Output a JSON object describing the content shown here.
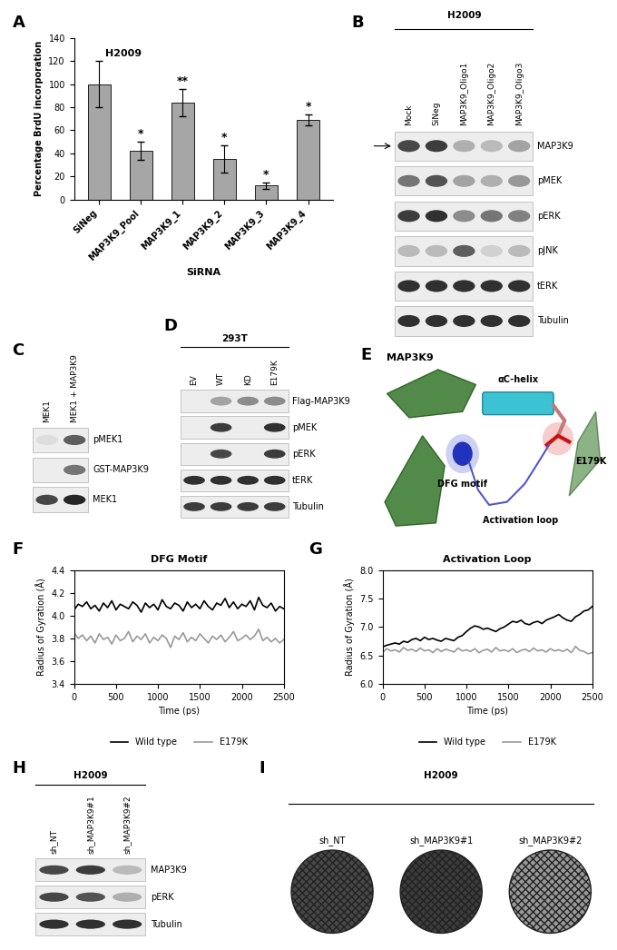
{
  "chart_data": [
    {
      "panel": "A",
      "type": "bar",
      "title": "H2009",
      "x_label": "SiRNA",
      "y_label": "Percentage BrdU incorporation",
      "categories": [
        "SiNeg",
        "MAP3K9_Pool",
        "MAP3K9_1",
        "MAP3K9_2",
        "MAP3K9_3",
        "MAP3K9_4"
      ],
      "values": [
        100,
        42,
        84,
        35,
        12,
        69
      ],
      "errors": [
        20,
        8,
        12,
        12,
        3,
        5
      ],
      "significance": [
        null,
        "*",
        "**",
        "*",
        "*",
        "*"
      ],
      "color": "#a6a6a6",
      "ylim": [
        0,
        140
      ],
      "yticks": [
        0,
        20,
        40,
        60,
        80,
        100,
        120,
        140
      ]
    },
    {
      "panel": "F",
      "type": "line",
      "title": "DFG Motif",
      "x_label": "Time (ps)",
      "y_label": "Radius of Gyration (Å)",
      "x": [
        0,
        50,
        100,
        150,
        200,
        250,
        300,
        350,
        400,
        450,
        500,
        550,
        600,
        650,
        700,
        750,
        800,
        850,
        900,
        950,
        1000,
        1050,
        1100,
        1150,
        1200,
        1250,
        1300,
        1350,
        1400,
        1450,
        1500,
        1550,
        1600,
        1650,
        1700,
        1750,
        1800,
        1850,
        1900,
        1950,
        2000,
        2050,
        2100,
        2150,
        2200,
        2250,
        2300,
        2350,
        2400,
        2450,
        2500
      ],
      "series": [
        {
          "name": "Wild type",
          "color": "#000000",
          "values": [
            4.05,
            4.1,
            4.08,
            4.12,
            4.06,
            4.09,
            4.04,
            4.11,
            4.07,
            4.13,
            4.05,
            4.1,
            4.08,
            4.06,
            4.12,
            4.09,
            4.03,
            4.11,
            4.07,
            4.1,
            4.05,
            4.14,
            4.08,
            4.06,
            4.11,
            4.09,
            4.04,
            4.12,
            4.07,
            4.1,
            4.06,
            4.13,
            4.08,
            4.05,
            4.11,
            4.09,
            4.15,
            4.07,
            4.12,
            4.06,
            4.1,
            4.08,
            4.13,
            4.05,
            4.16,
            4.09,
            4.07,
            4.11,
            4.04,
            4.08,
            4.06
          ]
        },
        {
          "name": "E179K",
          "color": "#999999",
          "values": [
            3.85,
            3.8,
            3.83,
            3.78,
            3.82,
            3.76,
            3.84,
            3.79,
            3.81,
            3.75,
            3.83,
            3.78,
            3.8,
            3.86,
            3.77,
            3.82,
            3.79,
            3.84,
            3.76,
            3.81,
            3.78,
            3.83,
            3.8,
            3.72,
            3.82,
            3.79,
            3.85,
            3.77,
            3.81,
            3.78,
            3.84,
            3.8,
            3.76,
            3.82,
            3.79,
            3.83,
            3.77,
            3.81,
            3.86,
            3.78,
            3.8,
            3.83,
            3.79,
            3.82,
            3.88,
            3.78,
            3.81,
            3.77,
            3.8,
            3.76,
            3.79
          ]
        }
      ],
      "xlim": [
        0,
        2500
      ],
      "xticks": [
        0,
        500,
        1000,
        1500,
        2000,
        2500
      ],
      "ylim": [
        3.4,
        4.4
      ],
      "yticks": [
        3.4,
        3.6,
        3.8,
        {
          "value": 4,
          "label": "4.0"
        },
        4.2,
        4.4
      ],
      "legend": "lower center"
    },
    {
      "panel": "G",
      "type": "line",
      "title": "Activation Loop",
      "x_label": "Time (ps)",
      "y_label": "Radius of Gyration (Å)",
      "x": [
        0,
        50,
        100,
        150,
        200,
        250,
        300,
        350,
        400,
        450,
        500,
        550,
        600,
        650,
        700,
        750,
        800,
        850,
        900,
        950,
        1000,
        1050,
        1100,
        1150,
        1200,
        1250,
        1300,
        1350,
        1400,
        1450,
        1500,
        1550,
        1600,
        1650,
        1700,
        1750,
        1800,
        1850,
        1900,
        1950,
        2000,
        2050,
        2100,
        2150,
        2200,
        2250,
        2300,
        2350,
        2400,
        2450,
        2500
      ],
      "series": [
        {
          "name": "Wild type",
          "color": "#000000",
          "values": [
            6.65,
            6.68,
            6.7,
            6.72,
            6.7,
            6.75,
            6.73,
            6.78,
            6.8,
            6.76,
            6.82,
            6.78,
            6.8,
            6.77,
            6.75,
            6.8,
            6.78,
            6.76,
            6.82,
            6.85,
            6.92,
            6.98,
            7.02,
            7.0,
            6.96,
            6.98,
            6.95,
            6.92,
            6.97,
            7.0,
            7.05,
            7.1,
            7.08,
            7.12,
            7.06,
            7.04,
            7.08,
            7.1,
            7.06,
            7.12,
            7.15,
            7.18,
            7.22,
            7.16,
            7.12,
            7.1,
            7.18,
            7.22,
            7.28,
            7.3,
            7.36
          ]
        },
        {
          "name": "E179K",
          "color": "#999999",
          "values": [
            6.55,
            6.62,
            6.58,
            6.6,
            6.56,
            6.64,
            6.59,
            6.61,
            6.57,
            6.63,
            6.58,
            6.6,
            6.55,
            6.62,
            6.57,
            6.61,
            6.59,
            6.56,
            6.63,
            6.58,
            6.6,
            6.57,
            6.62,
            6.55,
            6.59,
            6.61,
            6.56,
            6.64,
            6.58,
            6.6,
            6.57,
            6.62,
            6.55,
            6.59,
            6.61,
            6.57,
            6.63,
            6.58,
            6.6,
            6.56,
            6.62,
            6.58,
            6.6,
            6.57,
            6.61,
            6.55,
            6.66,
            6.59,
            6.57,
            6.53,
            6.55
          ]
        }
      ],
      "xlim": [
        0,
        2500
      ],
      "xticks": [
        0,
        500,
        1000,
        1500,
        2000,
        2500
      ],
      "ylim": [
        6,
        8
      ],
      "yticks": [
        {
          "value": 6,
          "label": "6.0"
        },
        6.5,
        {
          "value": 7,
          "label": "7.0"
        },
        7.5,
        {
          "value": 8,
          "label": "8.0"
        }
      ],
      "legend": "lower center"
    }
  ],
  "blots": [
    {
      "panel": "B",
      "title": "H2009",
      "lanes": [
        "Mock",
        "SiNeg",
        "MAP3K9_Oligo1",
        "MAP3K9_Oligo2",
        "MAP3K9_Oligo3"
      ],
      "rows": [
        {
          "name": "MAP3K9",
          "intensity": [
            0.8,
            0.85,
            0.35,
            0.3,
            0.4
          ]
        },
        {
          "name": "pMEK",
          "intensity": [
            0.6,
            0.75,
            0.4,
            0.35,
            0.45
          ]
        },
        {
          "name": "pERK",
          "intensity": [
            0.85,
            0.9,
            0.5,
            0.6,
            0.55
          ]
        },
        {
          "name": "pJNK",
          "intensity": [
            0.3,
            0.3,
            0.7,
            0.2,
            0.3
          ]
        },
        {
          "name": "tERK",
          "intensity": [
            0.9,
            0.9,
            0.9,
            0.9,
            0.9
          ]
        },
        {
          "name": "Tubulin",
          "intensity": [
            0.9,
            0.9,
            0.9,
            0.9,
            0.9
          ]
        }
      ]
    },
    {
      "panel": "C",
      "lanes": [
        "MEK1",
        "MEK1 + MAP3K9"
      ],
      "rows": [
        {
          "name": "pMEK1",
          "intensity": [
            0.15,
            0.7
          ]
        },
        {
          "name": "GST-MAP3K9",
          "intensity": [
            0,
            0.6
          ]
        },
        {
          "name": "MEK1",
          "intensity": [
            0.8,
            0.95
          ]
        }
      ]
    },
    {
      "panel": "D",
      "title": "293T",
      "lanes": [
        "EV",
        "WT",
        "KD",
        "E179K"
      ],
      "rows": [
        {
          "name": "Flag-MAP3K9",
          "intensity": [
            0,
            0.4,
            0.5,
            0.5
          ]
        },
        {
          "name": "pMEK",
          "intensity": [
            0,
            0.85,
            0,
            0.9
          ]
        },
        {
          "name": "pERK",
          "intensity": [
            0,
            0.8,
            0,
            0.85
          ]
        },
        {
          "name": "tERK",
          "intensity": [
            0.9,
            0.9,
            0.9,
            0.9
          ]
        },
        {
          "name": "Tubulin",
          "intensity": [
            0.85,
            0.85,
            0.85,
            0.85
          ]
        }
      ]
    },
    {
      "panel": "H",
      "title": "H2009",
      "lanes": [
        "sh_NT",
        "sh_MAP3K9#1",
        "sh_MAP3K9#2"
      ],
      "rows": [
        {
          "name": "MAP3K9",
          "intensity": [
            0.8,
            0.85,
            0.3
          ]
        },
        {
          "name": "pERK",
          "intensity": [
            0.8,
            0.75,
            0.35
          ]
        },
        {
          "name": "Tubulin",
          "intensity": [
            0.9,
            0.9,
            0.9
          ]
        }
      ]
    }
  ],
  "structure": {
    "panel": "E",
    "title": "MAP3K9",
    "labels": {
      "helix": "αC-helix",
      "dfg": "DFG motif",
      "mutation": "E179K",
      "loop": "Activation loop"
    }
  },
  "colony_assay": {
    "panel": "I",
    "title": "H2009",
    "wells": [
      {
        "name": "sh_NT",
        "density": 0.8
      },
      {
        "name": "sh_MAP3K9#1",
        "density": 0.85
      },
      {
        "name": "sh_MAP3K9#2",
        "density": 0.45
      }
    ]
  }
}
